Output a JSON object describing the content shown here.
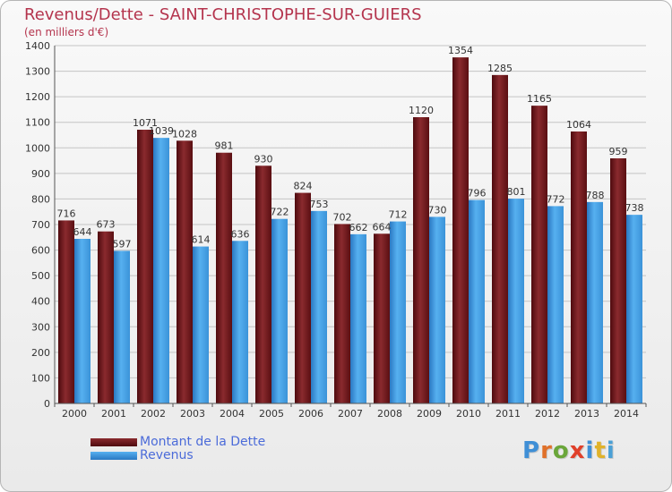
{
  "title": "Revenus/Dette - SAINT-CHRISTOPHE-SUR-GUIERS",
  "subtitle": "(en milliers d'€)",
  "colors": {
    "title": "#b4344d",
    "dette": "#7a1a1e",
    "revenus": "#3f9be0",
    "legend_text": "#4b6bd9"
  },
  "legend": [
    {
      "name": "Montant de la Dette",
      "color": "#7a1a1e"
    },
    {
      "name": "Revenus",
      "color": "#3f9be0"
    }
  ],
  "logo": "Proxiti",
  "chart_data": {
    "type": "bar",
    "title": "Revenus/Dette - SAINT-CHRISTOPHE-SUR-GUIERS",
    "ylabel": "(en milliers d'€)",
    "xlabel": "",
    "ylim": [
      0,
      1400
    ],
    "yticks": [
      0,
      100,
      200,
      300,
      400,
      500,
      600,
      700,
      800,
      900,
      1000,
      1100,
      1200,
      1300,
      1400
    ],
    "grid": true,
    "legend_position": "bottom-left",
    "categories": [
      "2000",
      "2001",
      "2002",
      "2003",
      "2004",
      "2005",
      "2006",
      "2007",
      "2008",
      "2009",
      "2010",
      "2011",
      "2012",
      "2013",
      "2014"
    ],
    "series": [
      {
        "name": "Montant de la Dette",
        "color": "#7a1a1e",
        "values": [
          716,
          673,
          1071,
          1028,
          981,
          930,
          824,
          702,
          664,
          1120,
          1354,
          1285,
          1165,
          1064,
          959
        ]
      },
      {
        "name": "Revenus",
        "color": "#3f9be0",
        "values": [
          644,
          597,
          1039,
          614,
          636,
          722,
          753,
          662,
          712,
          730,
          796,
          801,
          772,
          788,
          738
        ]
      }
    ]
  }
}
